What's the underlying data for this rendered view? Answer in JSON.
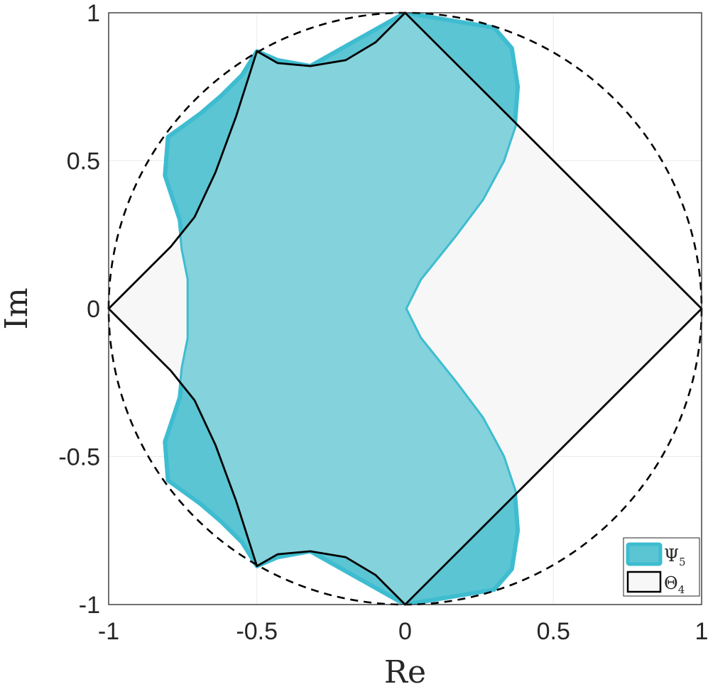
{
  "chart_data": {
    "type": "area",
    "xlabel": "Re",
    "ylabel": "Im",
    "xlim": [
      -1,
      1
    ],
    "ylim": [
      -1,
      1
    ],
    "grid": true,
    "legend_position": "bottom-right",
    "xticks": [
      "-1",
      "-0.5",
      "0",
      "0.5",
      "1"
    ],
    "yticks": [
      "1",
      "0.5",
      "0",
      "-0.5",
      "-1"
    ],
    "unit_circle": {
      "radius": 1,
      "style": "dashed",
      "color": "#000000"
    },
    "series": [
      {
        "name": "Ψ5",
        "name_base": "Ψ",
        "name_sub": "5",
        "kind": "filled-region",
        "fill_color": "#5bc5d4",
        "edge_color": "#3ebcd0",
        "x": [
          0,
          0.3,
          0.36,
          0.38,
          0.37,
          0.33,
          0.26,
          0.17,
          0.05,
          0,
          0.05,
          0.17,
          0.26,
          0.33,
          0.37,
          0.38,
          0.36,
          0.3,
          0,
          -0.32,
          -0.43,
          -0.5,
          -0.55,
          -0.62,
          -0.69,
          -0.8,
          -0.81,
          -0.76,
          -0.75,
          -0.73,
          -0.73,
          -0.73,
          -0.75,
          -0.76,
          -0.81,
          -0.8,
          -0.69,
          -0.62,
          -0.55,
          -0.5,
          -0.43,
          -0.32,
          0
        ],
        "y": [
          1,
          0.95,
          0.88,
          0.75,
          0.62,
          0.5,
          0.37,
          0.25,
          0.1,
          0,
          -0.1,
          -0.25,
          -0.37,
          -0.5,
          -0.62,
          -0.75,
          -0.88,
          -0.95,
          -1,
          -0.82,
          -0.84,
          -0.87,
          -0.79,
          -0.72,
          -0.66,
          -0.58,
          -0.45,
          -0.3,
          -0.2,
          -0.1,
          0,
          0.1,
          0.2,
          0.3,
          0.45,
          0.58,
          0.66,
          0.72,
          0.79,
          0.87,
          0.84,
          0.82,
          1
        ]
      },
      {
        "name": "Θ4",
        "name_base": "Θ",
        "name_sub": "4",
        "kind": "filled-region",
        "fill_color": "#f7f7f7",
        "edge_color": "#000000",
        "x": [
          0,
          1,
          0,
          -0.5,
          -0.57,
          -0.64,
          -0.71,
          -0.79,
          -1,
          -0.79,
          -0.71,
          -0.64,
          -0.57,
          -0.5,
          -0.43,
          -0.32,
          -0.2,
          -0.1,
          0,
          0,
          0.1,
          0.2,
          0.32,
          0.43,
          0.5,
          0.5
        ],
        "y": [
          1,
          0,
          -1,
          -0.87,
          -0.65,
          -0.46,
          -0.31,
          -0.21,
          0,
          0.21,
          0.31,
          0.46,
          0.65,
          0.87,
          0.83,
          0.82,
          0.84,
          0.9,
          1,
          1,
          0,
          0,
          0,
          0,
          0,
          0
        ],
        "outline_x": [
          0,
          1,
          0,
          -0.1,
          -0.2,
          -0.32,
          -0.43,
          -0.5,
          -0.57,
          -0.64,
          -0.71,
          -0.79,
          -1,
          -0.79,
          -0.71,
          -0.64,
          -0.57,
          -0.5,
          -0.43,
          -0.32,
          -0.2,
          -0.1,
          0
        ],
        "outline_y": [
          1,
          0,
          -1,
          -0.9,
          -0.84,
          -0.82,
          -0.83,
          -0.87,
          -0.65,
          -0.46,
          -0.31,
          -0.21,
          0,
          0.21,
          0.31,
          0.46,
          0.65,
          0.87,
          0.83,
          0.82,
          0.84,
          0.9,
          1
        ]
      }
    ],
    "overlap_color": "#84d2dc"
  }
}
